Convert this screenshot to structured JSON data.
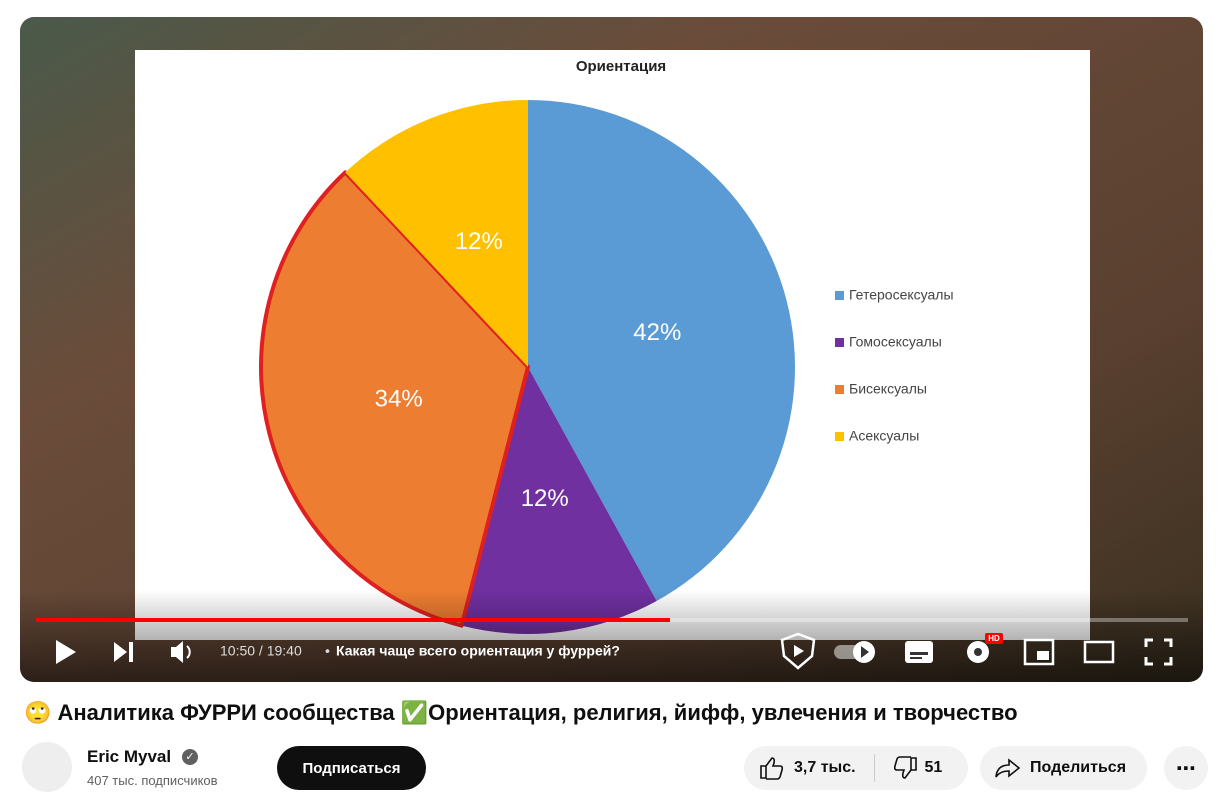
{
  "video": {
    "chart_data": {
      "type": "pie",
      "title": "Ориентация",
      "categories": [
        "Гетеросексуалы",
        "Гомосексуалы",
        "Бисексуалы",
        "Асексуалы"
      ],
      "values": [
        42,
        12,
        34,
        12
      ],
      "value_labels": [
        "42%",
        "12%",
        "34%",
        "12%"
      ],
      "colors": [
        "#5b9bd5",
        "#7030a0",
        "#ed7d31",
        "#ffc000"
      ],
      "legend": "right"
    },
    "time": "10:50 / 19:40",
    "separator": "•",
    "chapter": "Какая чаще всего ориентация у фуррей?",
    "hd_badge": "HD"
  },
  "title": "🙄 Аналитика ФУРРИ сообщества ✅Ориентация, религия, йифф, увлечения и творчество",
  "channel": {
    "name": "Eric Myval",
    "subscribers": "407 тыс. подписчиков"
  },
  "subscribe": "Подписаться",
  "likes": "3,7 тыс.",
  "dislikes": "51",
  "share": "Поделиться"
}
